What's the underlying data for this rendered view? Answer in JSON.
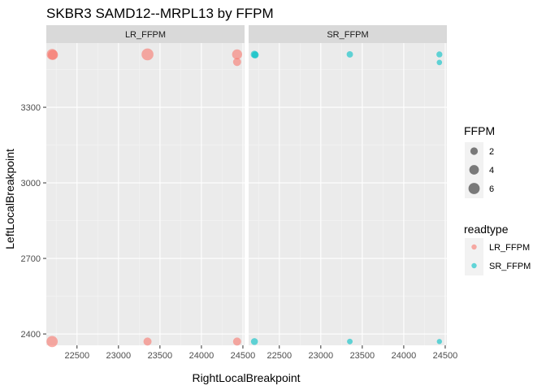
{
  "chart_data": {
    "type": "scatter",
    "title": "SKBR3 SAMD12--MRPL13 by FFPM",
    "xlabel": "RightLocalBreakpoint",
    "ylabel": "LeftLocalBreakpoint",
    "xlim": [
      22130,
      24520
    ],
    "ylim": [
      2355,
      3555
    ],
    "x_ticks": [
      22500,
      23000,
      23500,
      24000,
      24500
    ],
    "y_ticks": [
      2400,
      2700,
      3000,
      3300
    ],
    "grid": true,
    "legend_position": "right",
    "facets": [
      {
        "label": "LR_FFPM",
        "color": "#F8766D",
        "points": [
          {
            "x": 22200,
            "y": 3510,
            "ffpm": 5.5
          },
          {
            "x": 22210,
            "y": 3508,
            "ffpm": 4.5
          },
          {
            "x": 23350,
            "y": 3510,
            "ffpm": 7.0
          },
          {
            "x": 24430,
            "y": 3510,
            "ffpm": 4.5
          },
          {
            "x": 24430,
            "y": 3480,
            "ffpm": 2.5
          },
          {
            "x": 22200,
            "y": 2370,
            "ffpm": 6.0
          },
          {
            "x": 23350,
            "y": 2370,
            "ffpm": 2.5
          },
          {
            "x": 24430,
            "y": 2370,
            "ffpm": 2.5
          }
        ]
      },
      {
        "label": "SR_FFPM",
        "color": "#00BFC4",
        "points": [
          {
            "x": 22200,
            "y": 3510,
            "ffpm": 2.0
          },
          {
            "x": 22210,
            "y": 3508,
            "ffpm": 1.6
          },
          {
            "x": 23350,
            "y": 3510,
            "ffpm": 1.2
          },
          {
            "x": 24430,
            "y": 3510,
            "ffpm": 1.0
          },
          {
            "x": 24430,
            "y": 3478,
            "ffpm": 0.7
          },
          {
            "x": 22200,
            "y": 2370,
            "ffpm": 1.6
          },
          {
            "x": 23350,
            "y": 2370,
            "ffpm": 0.8
          },
          {
            "x": 24430,
            "y": 2370,
            "ffpm": 0.6
          }
        ]
      }
    ],
    "size_legend": {
      "title": "FFPM",
      "entries": [
        {
          "label": "2",
          "value": 2
        },
        {
          "label": "4",
          "value": 4
        },
        {
          "label": "6",
          "value": 6
        }
      ]
    },
    "color_legend": {
      "title": "readtype",
      "entries": [
        {
          "label": "LR_FFPM",
          "color": "#F8766D"
        },
        {
          "label": "SR_FFPM",
          "color": "#00BFC4"
        }
      ]
    }
  }
}
